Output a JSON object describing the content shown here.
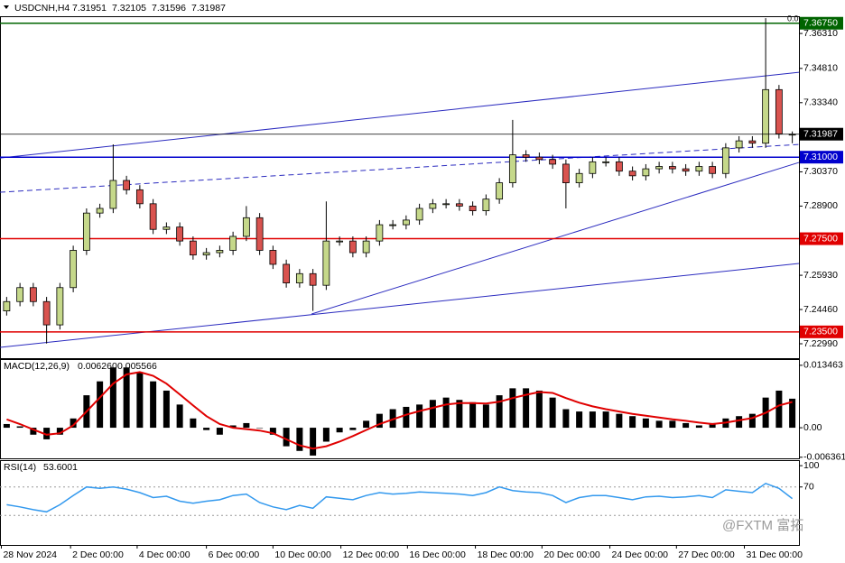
{
  "watermark": "@FXTM 富拓",
  "chart_data": [
    {
      "type": "candlestick",
      "symbol": "USDCNH,H4",
      "xlim": [
        -0.5,
        59.5
      ],
      "ylim": [
        7.2237,
        7.3705
      ],
      "opens": [
        7.244,
        7.248,
        7.254,
        7.248,
        7.238,
        7.254,
        7.27,
        7.286,
        7.288,
        7.3,
        7.296,
        7.29,
        7.279,
        7.28,
        7.274,
        7.268,
        7.269,
        7.27,
        7.276,
        7.284,
        7.27,
        7.264,
        7.256,
        7.26,
        7.255,
        7.274,
        7.274,
        7.269,
        7.274,
        7.281,
        7.281,
        7.283,
        7.288,
        7.29,
        7.29,
        7.289,
        7.287,
        7.292,
        7.299,
        7.311,
        7.31,
        7.309,
        7.307,
        7.299,
        7.303,
        7.308,
        7.308,
        7.304,
        7.302,
        7.305,
        7.306,
        7.305,
        7.304,
        7.306,
        7.303,
        7.314,
        7.317,
        7.316,
        7.339,
        7.31951
      ],
      "highs": [
        7.25,
        7.256,
        7.256,
        7.25,
        7.256,
        7.272,
        7.288,
        7.29,
        7.3155,
        7.302,
        7.298,
        7.292,
        7.282,
        7.282,
        7.276,
        7.271,
        7.272,
        7.278,
        7.289,
        7.286,
        7.272,
        7.266,
        7.262,
        7.262,
        7.291,
        7.276,
        7.276,
        7.276,
        7.283,
        7.283,
        7.285,
        7.29,
        7.292,
        7.292,
        7.292,
        7.291,
        7.294,
        7.301,
        7.326,
        7.313,
        7.312,
        7.311,
        7.309,
        7.305,
        7.31,
        7.31,
        7.31,
        7.306,
        7.307,
        7.308,
        7.308,
        7.307,
        7.308,
        7.308,
        7.316,
        7.319,
        7.319,
        7.3697,
        7.341,
        7.32105
      ],
      "lows": [
        7.242,
        7.246,
        7.246,
        7.23,
        7.236,
        7.252,
        7.268,
        7.284,
        7.286,
        7.294,
        7.288,
        7.277,
        7.277,
        7.272,
        7.266,
        7.266,
        7.267,
        7.268,
        7.274,
        7.268,
        7.262,
        7.254,
        7.254,
        7.244,
        7.253,
        7.272,
        7.267,
        7.267,
        7.272,
        7.279,
        7.279,
        7.281,
        7.286,
        7.288,
        7.287,
        7.285,
        7.285,
        7.29,
        7.297,
        7.308,
        7.307,
        7.305,
        7.288,
        7.297,
        7.301,
        7.306,
        7.302,
        7.3,
        7.3,
        7.303,
        7.303,
        7.302,
        7.302,
        7.301,
        7.301,
        7.312,
        7.314,
        7.314,
        7.318,
        7.31596
      ],
      "closes": [
        7.248,
        7.254,
        7.248,
        7.238,
        7.254,
        7.27,
        7.286,
        7.288,
        7.3,
        7.296,
        7.29,
        7.279,
        7.28,
        7.274,
        7.268,
        7.269,
        7.27,
        7.276,
        7.284,
        7.27,
        7.264,
        7.256,
        7.26,
        7.255,
        7.274,
        7.274,
        7.269,
        7.274,
        7.281,
        7.281,
        7.283,
        7.288,
        7.29,
        7.29,
        7.289,
        7.287,
        7.292,
        7.299,
        7.311,
        7.31,
        7.309,
        7.307,
        7.299,
        7.303,
        7.308,
        7.308,
        7.304,
        7.302,
        7.305,
        7.306,
        7.305,
        7.304,
        7.306,
        7.303,
        7.314,
        7.317,
        7.316,
        7.339,
        7.32,
        7.31987
      ],
      "up_color": "#c5d88a",
      "down_color": "#d9534f",
      "yticks": [
        {
          "value": 7.3631,
          "label": "7.36310"
        },
        {
          "value": 7.3481,
          "label": "7.34810"
        },
        {
          "value": 7.3334,
          "label": "7.33340"
        },
        {
          "value": 7.3037,
          "label": "7.30370"
        },
        {
          "value": 7.289,
          "label": "7.28900"
        },
        {
          "value": 7.2593,
          "label": "7.25930"
        },
        {
          "value": 7.2446,
          "label": "7.24460"
        },
        {
          "value": 7.2299,
          "label": "7.22990"
        }
      ],
      "levels": [
        {
          "value": 7.3675,
          "label": "7.36750",
          "color": "#006400"
        },
        {
          "value": 7.31,
          "label": "7.31000",
          "color": "#0000cd"
        },
        {
          "value": 7.275,
          "label": "7.27500",
          "color": "#e00000"
        },
        {
          "value": 7.235,
          "label": "7.23500",
          "color": "#e00000"
        }
      ],
      "trendlines": [
        {
          "x": [
            -0.5,
            59.5
          ],
          "y": [
            7.30966,
            7.34645
          ],
          "color": "#2b2bbf"
        },
        {
          "x": [
            -0.5,
            59.5
          ],
          "y": [
            7.22835,
            7.26436
          ],
          "color": "#2b2bbf"
        },
        {
          "x": [
            22.9,
            59.5
          ],
          "y": [
            7.24268,
            7.30773
          ],
          "color": "#2b2bbf"
        },
        {
          "x": [
            -0.5,
            59.5
          ],
          "y": [
            7.29495,
            7.31547
          ],
          "color": "#2b2bbf",
          "dashed": true
        }
      ],
      "fibo_label": "0.0",
      "xticks": [
        {
          "value": -0.4,
          "label": "28 Nov 2024"
        },
        {
          "value": 4.8,
          "label": "2 Dec 00:00"
        },
        {
          "value": 9.8,
          "label": "4 Dec 00:00"
        },
        {
          "value": 15,
          "label": "6 Dec 00:00"
        },
        {
          "value": 20,
          "label": "10 Dec 00:00"
        },
        {
          "value": 25.1,
          "label": "12 Dec 00:00"
        },
        {
          "value": 30.1,
          "label": "16 Dec 00:00"
        },
        {
          "value": 35.2,
          "label": "18 Dec 00:00"
        },
        {
          "value": 40.2,
          "label": "20 Dec 00:00"
        },
        {
          "value": 45.3,
          "label": "24 Dec 00:00"
        },
        {
          "value": 50.3,
          "label": "27 Dec 00:00"
        },
        {
          "value": 55.4,
          "label": "31 Dec 00:00"
        }
      ]
    },
    {
      "type": "macd",
      "title": "MACD(12,26,9)",
      "readout": [
        "0.006260",
        "0.005566"
      ],
      "ylim": [
        -0.0066,
        0.0148
      ],
      "yticks": [
        0.013463,
        {
          "value": 0,
          "label": "0.00"
        },
        -0.006361
      ],
      "values": [
        0.0008,
        0.0003,
        -0.0015,
        -0.0025,
        -0.0015,
        0.002,
        0.007,
        0.01,
        0.013,
        0.013,
        0.012,
        0.01,
        0.008,
        0.005,
        0.002,
        -0.0005,
        -0.0015,
        0.0005,
        0.001,
        0.0,
        -0.0015,
        -0.004,
        -0.005,
        -0.006,
        -0.003,
        -0.001,
        -0.0005,
        0.0015,
        0.003,
        0.004,
        0.0045,
        0.005,
        0.006,
        0.0065,
        0.006,
        0.0055,
        0.005,
        0.007,
        0.0085,
        0.0085,
        0.008,
        0.0065,
        0.004,
        0.0035,
        0.0035,
        0.0035,
        0.003,
        0.0025,
        0.002,
        0.0015,
        0.0015,
        0.001,
        0.0005,
        0.001,
        0.002,
        0.0025,
        0.003,
        0.0065,
        0.008,
        0.00626
      ],
      "signal": [
        0.0018,
        0.0008,
        -0.0004,
        -0.0015,
        -0.0012,
        0.0005,
        0.0035,
        0.0065,
        0.0095,
        0.0115,
        0.012,
        0.0112,
        0.0095,
        0.0072,
        0.0048,
        0.0025,
        0.0008,
        0.0,
        -0.0003,
        -0.0006,
        -0.0012,
        -0.0025,
        -0.0038,
        -0.0045,
        -0.004,
        -0.003,
        -0.0018,
        -0.0005,
        0.0008,
        0.0018,
        0.0028,
        0.0036,
        0.0043,
        0.005,
        0.0053,
        0.0053,
        0.0052,
        0.0056,
        0.0064,
        0.0071,
        0.0077,
        0.0075,
        0.0064,
        0.0054,
        0.0046,
        0.004,
        0.0035,
        0.003,
        0.0026,
        0.0022,
        0.0018,
        0.0015,
        0.0011,
        0.0008,
        0.0011,
        0.0016,
        0.0021,
        0.0032,
        0.0048,
        0.005566
      ],
      "color": "#000000",
      "signal_color": "#e00000"
    },
    {
      "type": "line",
      "title": "RSI(14)",
      "ylim": [
        -11.7,
        107.8
      ],
      "yticks": [
        100,
        70
      ],
      "levels": [
        70,
        30
      ],
      "color": "#3399ee",
      "values": [
        45,
        42,
        38,
        35,
        45,
        58,
        70,
        68,
        70,
        67,
        62,
        55,
        57,
        50,
        47,
        50,
        52,
        58,
        60,
        48,
        42,
        38,
        44,
        40,
        56,
        54,
        52,
        58,
        62,
        60,
        61,
        63,
        62,
        61,
        60,
        58,
        62,
        70,
        65,
        63,
        62,
        58,
        48,
        55,
        58,
        58,
        55,
        52,
        56,
        57,
        55,
        56,
        58,
        55,
        66,
        64,
        62,
        75,
        68,
        53.6001
      ]
    }
  ]
}
